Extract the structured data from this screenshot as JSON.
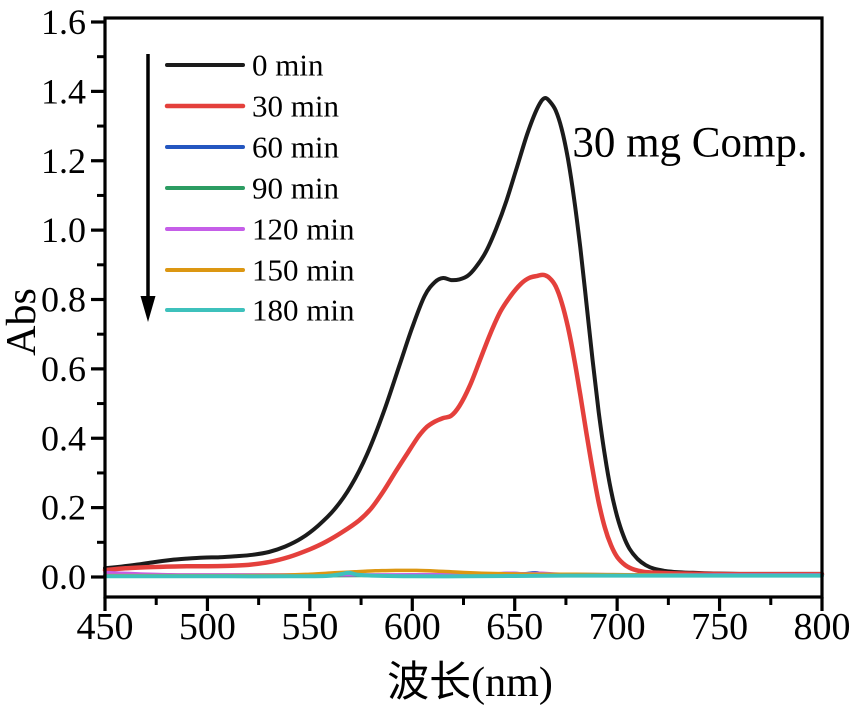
{
  "figure": {
    "background": "#ffffff",
    "axis_color": "#000000",
    "text_color": "#000000"
  },
  "chart_data": {
    "type": "line",
    "title": "",
    "annotation": "30 mg Comp.",
    "xlabel": "波长(nm)",
    "ylabel": "Abs",
    "xlim": [
      450,
      800
    ],
    "ylim": [
      0.0,
      1.6
    ],
    "grid": "off",
    "legend_position": "upper-left",
    "legend_time_arrow": "down",
    "x_axis": {
      "major_ticks": [
        450,
        500,
        550,
        600,
        650,
        700,
        750,
        800
      ],
      "tick_labels": [
        "450",
        "500",
        "550",
        "600",
        "650",
        "700",
        "750",
        "800"
      ],
      "minor_ticks": [
        475,
        525,
        575,
        625,
        675,
        725,
        775
      ]
    },
    "y_axis": {
      "major_ticks": [
        0.0,
        0.2,
        0.4,
        0.6,
        0.8,
        1.0,
        1.2,
        1.4,
        1.6
      ],
      "tick_labels": [
        "0.0",
        "0.2",
        "0.4",
        "0.6",
        "0.8",
        "1.0",
        "1.2",
        "1.4",
        "1.6"
      ],
      "minor_ticks": [
        0.1,
        0.3,
        0.5,
        0.7,
        0.9,
        1.1,
        1.3,
        1.5
      ]
    },
    "series": [
      {
        "name": "0 min",
        "color": "#1b1b1b",
        "width": 4,
        "points": [
          [
            450,
            0.025
          ],
          [
            458,
            0.03
          ],
          [
            466,
            0.036
          ],
          [
            474,
            0.043
          ],
          [
            482,
            0.049
          ],
          [
            490,
            0.053
          ],
          [
            498,
            0.056
          ],
          [
            506,
            0.057
          ],
          [
            514,
            0.06
          ],
          [
            522,
            0.064
          ],
          [
            530,
            0.072
          ],
          [
            538,
            0.088
          ],
          [
            546,
            0.112
          ],
          [
            554,
            0.148
          ],
          [
            562,
            0.195
          ],
          [
            570,
            0.262
          ],
          [
            578,
            0.355
          ],
          [
            586,
            0.475
          ],
          [
            594,
            0.615
          ],
          [
            600,
            0.72
          ],
          [
            606,
            0.81
          ],
          [
            611,
            0.85
          ],
          [
            615,
            0.862
          ],
          [
            619,
            0.856
          ],
          [
            623,
            0.858
          ],
          [
            627,
            0.868
          ],
          [
            631,
            0.893
          ],
          [
            636,
            0.938
          ],
          [
            641,
            1.005
          ],
          [
            646,
            1.085
          ],
          [
            651,
            1.18
          ],
          [
            656,
            1.275
          ],
          [
            660,
            1.338
          ],
          [
            663,
            1.372
          ],
          [
            665,
            1.381
          ],
          [
            667,
            1.372
          ],
          [
            670,
            1.345
          ],
          [
            673,
            1.29
          ],
          [
            676,
            1.205
          ],
          [
            679,
            1.09
          ],
          [
            682,
            0.95
          ],
          [
            685,
            0.79
          ],
          [
            688,
            0.625
          ],
          [
            691,
            0.475
          ],
          [
            694,
            0.35
          ],
          [
            697,
            0.25
          ],
          [
            700,
            0.175
          ],
          [
            703,
            0.12
          ],
          [
            706,
            0.082
          ],
          [
            710,
            0.052
          ],
          [
            714,
            0.034
          ],
          [
            718,
            0.024
          ],
          [
            723,
            0.018
          ],
          [
            729,
            0.014
          ],
          [
            737,
            0.012
          ],
          [
            747,
            0.01
          ],
          [
            760,
            0.009
          ],
          [
            775,
            0.009
          ],
          [
            790,
            0.009
          ],
          [
            800,
            0.009
          ]
        ]
      },
      {
        "name": "30 min",
        "color": "#e4403c",
        "width": 4.5,
        "points": [
          [
            450,
            0.02
          ],
          [
            460,
            0.025
          ],
          [
            470,
            0.028
          ],
          [
            480,
            0.03
          ],
          [
            490,
            0.031
          ],
          [
            500,
            0.031
          ],
          [
            510,
            0.032
          ],
          [
            520,
            0.035
          ],
          [
            530,
            0.043
          ],
          [
            540,
            0.058
          ],
          [
            550,
            0.08
          ],
          [
            558,
            0.102
          ],
          [
            566,
            0.13
          ],
          [
            574,
            0.163
          ],
          [
            580,
            0.198
          ],
          [
            586,
            0.248
          ],
          [
            592,
            0.305
          ],
          [
            598,
            0.36
          ],
          [
            603,
            0.405
          ],
          [
            607,
            0.432
          ],
          [
            611,
            0.448
          ],
          [
            615,
            0.458
          ],
          [
            619,
            0.465
          ],
          [
            623,
            0.493
          ],
          [
            628,
            0.55
          ],
          [
            633,
            0.625
          ],
          [
            638,
            0.7
          ],
          [
            643,
            0.765
          ],
          [
            648,
            0.81
          ],
          [
            653,
            0.845
          ],
          [
            657,
            0.862
          ],
          [
            661,
            0.868
          ],
          [
            664,
            0.871
          ],
          [
            667,
            0.862
          ],
          [
            670,
            0.838
          ],
          [
            673,
            0.79
          ],
          [
            676,
            0.72
          ],
          [
            679,
            0.63
          ],
          [
            682,
            0.525
          ],
          [
            685,
            0.415
          ],
          [
            688,
            0.31
          ],
          [
            691,
            0.215
          ],
          [
            694,
            0.142
          ],
          [
            697,
            0.092
          ],
          [
            700,
            0.058
          ],
          [
            704,
            0.034
          ],
          [
            708,
            0.022
          ],
          [
            713,
            0.015
          ],
          [
            720,
            0.012
          ],
          [
            730,
            0.01
          ],
          [
            743,
            0.009
          ],
          [
            758,
            0.008
          ],
          [
            775,
            0.008
          ],
          [
            800,
            0.008
          ]
        ]
      },
      {
        "name": "60 min",
        "color": "#2456c0",
        "width": 3.5,
        "points": [
          [
            450,
            0.006
          ],
          [
            470,
            0.005
          ],
          [
            500,
            0.005
          ],
          [
            530,
            0.005
          ],
          [
            560,
            0.005
          ],
          [
            590,
            0.005
          ],
          [
            620,
            0.006
          ],
          [
            640,
            0.008
          ],
          [
            648,
            0.011
          ],
          [
            654,
            0.009
          ],
          [
            660,
            0.012
          ],
          [
            666,
            0.008
          ],
          [
            680,
            0.007
          ],
          [
            700,
            0.006
          ],
          [
            730,
            0.006
          ],
          [
            765,
            0.006
          ],
          [
            800,
            0.006
          ]
        ]
      },
      {
        "name": "90 min",
        "color": "#2c9c62",
        "width": 3.5,
        "points": [
          [
            450,
            0.005
          ],
          [
            480,
            0.004
          ],
          [
            520,
            0.004
          ],
          [
            560,
            0.004
          ],
          [
            600,
            0.005
          ],
          [
            635,
            0.006
          ],
          [
            655,
            0.007
          ],
          [
            675,
            0.006
          ],
          [
            700,
            0.005
          ],
          [
            750,
            0.004
          ],
          [
            800,
            0.004
          ]
        ]
      },
      {
        "name": "120 min",
        "color": "#c55ee8",
        "width": 3.5,
        "points": [
          [
            450,
            0.013
          ],
          [
            458,
            0.011
          ],
          [
            466,
            0.009
          ],
          [
            478,
            0.007
          ],
          [
            495,
            0.006
          ],
          [
            520,
            0.006
          ],
          [
            550,
            0.006
          ],
          [
            580,
            0.006
          ],
          [
            610,
            0.007
          ],
          [
            635,
            0.008
          ],
          [
            648,
            0.011
          ],
          [
            655,
            0.009
          ],
          [
            663,
            0.011
          ],
          [
            672,
            0.008
          ],
          [
            695,
            0.007
          ],
          [
            730,
            0.006
          ],
          [
            765,
            0.006
          ],
          [
            800,
            0.006
          ]
        ]
      },
      {
        "name": "150 min",
        "color": "#dc9712",
        "width": 3.5,
        "points": [
          [
            450,
            0.004
          ],
          [
            480,
            0.004
          ],
          [
            510,
            0.004
          ],
          [
            535,
            0.005
          ],
          [
            550,
            0.008
          ],
          [
            562,
            0.012
          ],
          [
            572,
            0.015
          ],
          [
            582,
            0.018
          ],
          [
            592,
            0.019
          ],
          [
            602,
            0.019
          ],
          [
            612,
            0.017
          ],
          [
            622,
            0.014
          ],
          [
            634,
            0.011
          ],
          [
            648,
            0.009
          ],
          [
            662,
            0.008
          ],
          [
            678,
            0.008
          ],
          [
            695,
            0.007
          ],
          [
            715,
            0.006
          ],
          [
            745,
            0.005
          ],
          [
            775,
            0.005
          ],
          [
            800,
            0.005
          ]
        ]
      },
      {
        "name": "180 min",
        "color": "#3ec1bc",
        "width": 4,
        "points": [
          [
            450,
            0.002
          ],
          [
            480,
            0.002
          ],
          [
            510,
            0.002
          ],
          [
            540,
            0.002
          ],
          [
            558,
            0.003
          ],
          [
            565,
            0.008
          ],
          [
            569,
            0.012
          ],
          [
            573,
            0.007
          ],
          [
            580,
            0.004
          ],
          [
            600,
            0.002
          ],
          [
            625,
            0.002
          ],
          [
            650,
            0.003
          ],
          [
            675,
            0.004
          ],
          [
            705,
            0.004
          ],
          [
            740,
            0.004
          ],
          [
            770,
            0.004
          ],
          [
            800,
            0.004
          ]
        ]
      }
    ]
  }
}
